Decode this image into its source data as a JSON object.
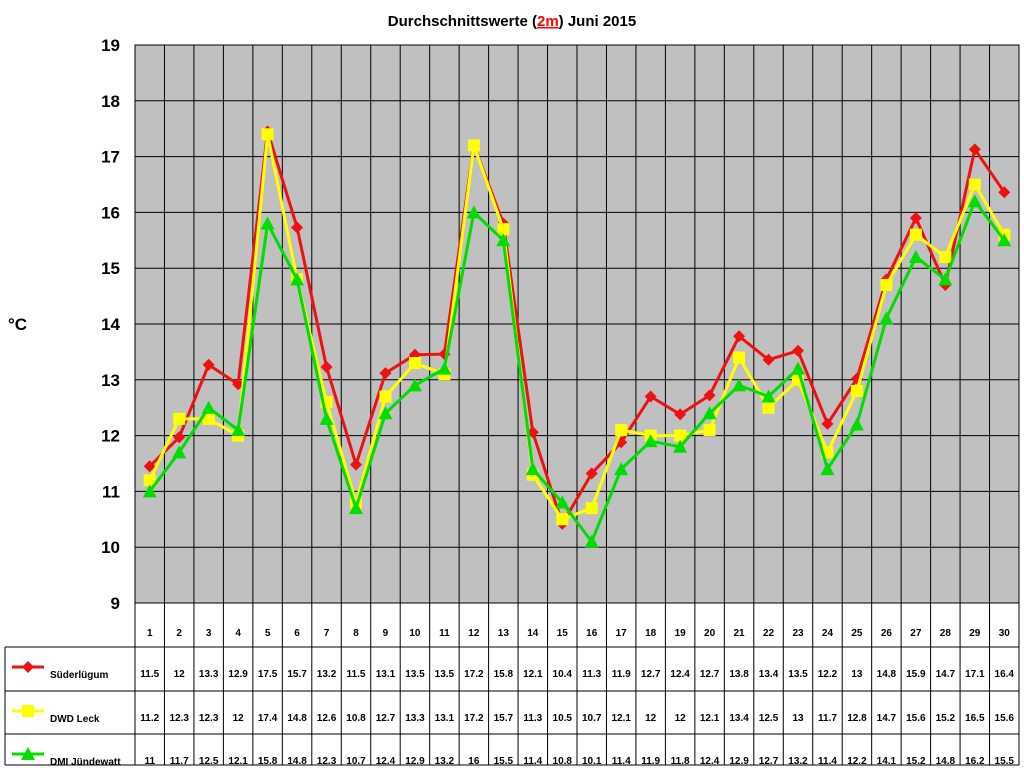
{
  "chart_data": {
    "type": "line",
    "title": {
      "before": "Durchschnittswerte (",
      "highlight": "2m",
      "after": ") Juni 2015"
    },
    "ylabel": "°C",
    "ylim": [
      9,
      19
    ],
    "yticks": [
      "9",
      "10",
      "11",
      "12",
      "13",
      "14",
      "15",
      "16",
      "17",
      "18",
      "19"
    ],
    "grid": true,
    "legend_placement": "data-table-left",
    "categories": [
      "1",
      "2",
      "3",
      "4",
      "5",
      "6",
      "7",
      "8",
      "9",
      "10",
      "11",
      "12",
      "13",
      "14",
      "15",
      "16",
      "17",
      "18",
      "19",
      "20",
      "21",
      "22",
      "23",
      "24",
      "25",
      "26",
      "27",
      "28",
      "29",
      "30"
    ],
    "series": [
      {
        "name": "Süderlügum",
        "color": "#ee1111",
        "marker": "diamond",
        "values": [
          11.45,
          11.97,
          13.27,
          12.92,
          17.45,
          15.73,
          13.23,
          11.48,
          13.12,
          13.45,
          13.46,
          17.2,
          15.8,
          12.06,
          10.42,
          11.32,
          11.88,
          12.7,
          12.38,
          12.72,
          13.78,
          13.36,
          13.52,
          12.21,
          13.02,
          14.8,
          15.9,
          14.7,
          17.13,
          16.36
        ],
        "labels": [
          "11.5",
          "12",
          "13.3",
          "12.9",
          "17.5",
          "15.7",
          "13.2",
          "11.5",
          "13.1",
          "13.5",
          "13.5",
          "17.2",
          "15.8",
          "12.1",
          "10.4",
          "11.3",
          "11.9",
          "12.7",
          "12.4",
          "12.7",
          "13.8",
          "13.4",
          "13.5",
          "12.2",
          "13",
          "14.8",
          "15.9",
          "14.7",
          "17.1",
          "16.4"
        ]
      },
      {
        "name": "DWD Leck",
        "color": "#ffff00",
        "marker": "square",
        "values": [
          11.2,
          12.3,
          12.3,
          12.0,
          17.4,
          14.8,
          12.6,
          10.8,
          12.7,
          13.3,
          13.1,
          17.2,
          15.7,
          11.3,
          10.5,
          10.7,
          12.1,
          12.0,
          12.0,
          12.1,
          13.4,
          12.5,
          13.0,
          11.7,
          12.8,
          14.7,
          15.6,
          15.2,
          16.5,
          15.6
        ],
        "labels": [
          "11.2",
          "12.3",
          "12.3",
          "12",
          "17.4",
          "14.8",
          "12.6",
          "10.8",
          "12.7",
          "13.3",
          "13.1",
          "17.2",
          "15.7",
          "11.3",
          "10.5",
          "10.7",
          "12.1",
          "12",
          "12",
          "12.1",
          "13.4",
          "12.5",
          "13",
          "11.7",
          "12.8",
          "14.7",
          "15.6",
          "15.2",
          "16.5",
          "15.6"
        ]
      },
      {
        "name": "DMI Jündewatt",
        "color": "#00dd00",
        "marker": "triangle",
        "values": [
          11.0,
          11.7,
          12.5,
          12.1,
          15.8,
          14.8,
          12.3,
          10.7,
          12.4,
          12.9,
          13.2,
          16.0,
          15.5,
          11.4,
          10.8,
          10.1,
          11.4,
          11.9,
          11.8,
          12.4,
          12.9,
          12.7,
          13.2,
          11.4,
          12.2,
          14.1,
          15.2,
          14.8,
          16.2,
          15.5
        ],
        "labels": [
          "11",
          "11.7",
          "12.5",
          "12.1",
          "15.8",
          "14.8",
          "12.3",
          "10.7",
          "12.4",
          "12.9",
          "13.2",
          "16",
          "15.5",
          "11.4",
          "10.8",
          "10.1",
          "11.4",
          "11.9",
          "11.8",
          "12.4",
          "12.9",
          "12.7",
          "13.2",
          "11.4",
          "12.2",
          "14.1",
          "15.2",
          "14.8",
          "16.2",
          "15.5"
        ]
      }
    ],
    "colors": {
      "plot_background": "#c0c0c0",
      "grid": "#000000",
      "border": "#000000"
    }
  }
}
